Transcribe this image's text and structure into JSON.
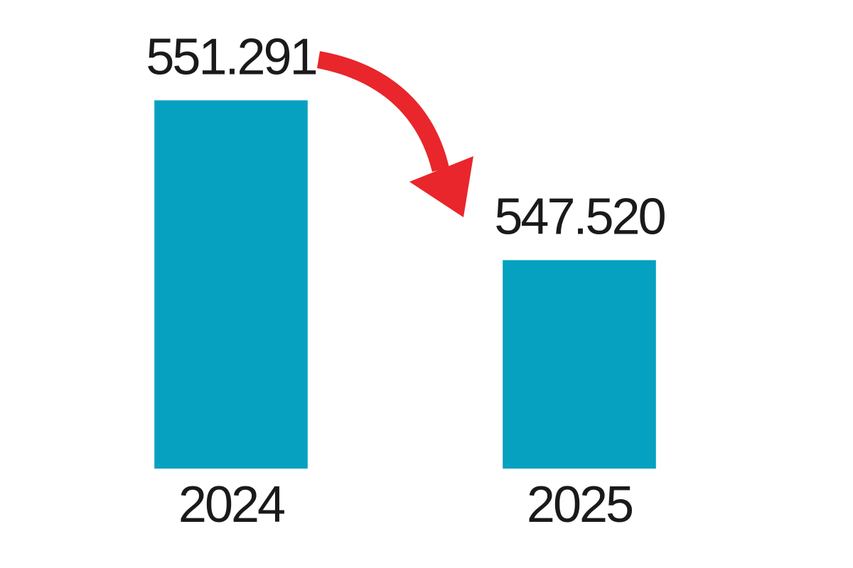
{
  "chart_data": {
    "type": "bar",
    "categories": [
      "2024",
      "2025"
    ],
    "values": [
      551291,
      547520
    ],
    "value_labels": [
      "551.291",
      "547.520"
    ],
    "color": "#06a1c0",
    "ylim": [
      542600,
      552000
    ]
  }
}
